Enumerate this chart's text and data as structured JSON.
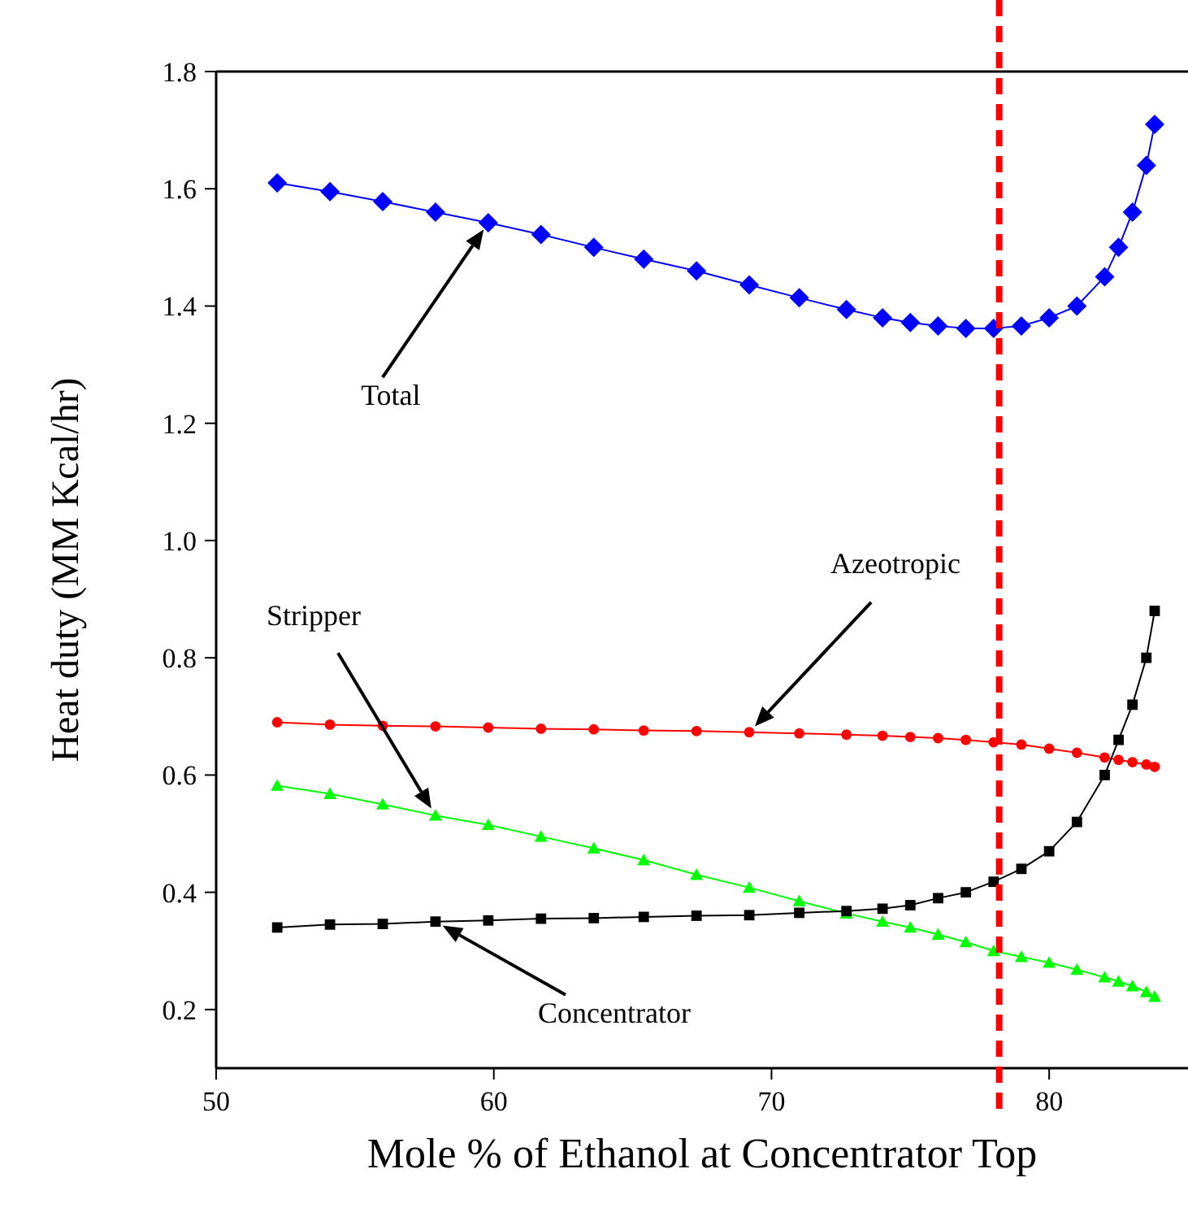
{
  "chart_data": {
    "type": "line",
    "xlabel": "Mole % of Ethanol at Concentrator Top",
    "ylabel": "Heat duty (MM Kcal/hr)",
    "x": [
      52.2,
      54.1,
      56.0,
      57.9,
      59.8,
      61.7,
      63.6,
      65.4,
      67.3,
      69.2,
      71.0,
      72.7,
      74.0,
      75.0,
      76.0,
      77.0,
      78.0,
      79.0,
      80.0,
      81.0,
      82.0,
      82.5,
      83.0,
      83.5,
      83.8
    ],
    "series": [
      {
        "color": "#0000ff",
        "marker": "diamond",
        "values": [
          1.61,
          1.595,
          1.578,
          1.56,
          1.542,
          1.522,
          1.5,
          1.48,
          1.46,
          1.436,
          1.414,
          1.394,
          1.38,
          1.372,
          1.366,
          1.362,
          1.362,
          1.366,
          1.38,
          1.4,
          1.45,
          1.5,
          1.56,
          1.64,
          1.71
        ]
      },
      {
        "color": "#ff0000",
        "marker": "circle",
        "values": [
          0.69,
          0.686,
          0.684,
          0.683,
          0.681,
          0.679,
          0.678,
          0.676,
          0.675,
          0.673,
          0.671,
          0.669,
          0.667,
          0.665,
          0.663,
          0.66,
          0.656,
          0.652,
          0.645,
          0.638,
          0.63,
          0.626,
          0.622,
          0.618,
          0.614
        ]
      },
      {
        "color": "#00ff00",
        "marker": "triangle",
        "values": [
          0.582,
          0.568,
          0.55,
          0.531,
          0.515,
          0.495,
          0.475,
          0.455,
          0.43,
          0.408,
          0.385,
          0.364,
          0.35,
          0.34,
          0.328,
          0.315,
          0.3,
          0.29,
          0.28,
          0.268,
          0.255,
          0.248,
          0.24,
          0.23,
          0.222
        ]
      },
      {
        "color": "#000000",
        "marker": "square",
        "values": [
          0.34,
          0.345,
          0.346,
          0.35,
          0.352,
          0.355,
          0.356,
          0.358,
          0.36,
          0.361,
          0.365,
          0.368,
          0.372,
          0.378,
          0.39,
          0.4,
          0.418,
          0.44,
          0.47,
          0.52,
          0.6,
          0.66,
          0.72,
          0.8,
          0.88
        ]
      }
    ],
    "xlim": [
      50,
      85
    ],
    "xticks": [
      50,
      60,
      70,
      80
    ],
    "ylim": [
      0.1,
      1.8
    ],
    "yticks": [
      {
        "value": 0.2,
        "label": "0.2"
      },
      {
        "value": 0.4,
        "label": "0.4"
      },
      {
        "value": 0.6,
        "label": "0.6"
      },
      {
        "value": 0.8,
        "label": "0.8"
      },
      {
        "value": 1.0,
        "label": "1.0"
      },
      {
        "value": 1.2,
        "label": "1.2"
      },
      {
        "value": 1.4,
        "label": "1.4"
      },
      {
        "value": 1.6,
        "label": "1.6"
      },
      {
        "value": 1.8,
        "label": "1.8"
      }
    ],
    "ref_lines": [
      {
        "axis": "x",
        "value": 78.2,
        "color": "#ff0000",
        "line_style": "dashed"
      }
    ],
    "annotations": [
      "Total",
      "Azeotropic",
      "Stripper",
      "Concentrator"
    ],
    "grid": false,
    "line_style": "solid"
  }
}
